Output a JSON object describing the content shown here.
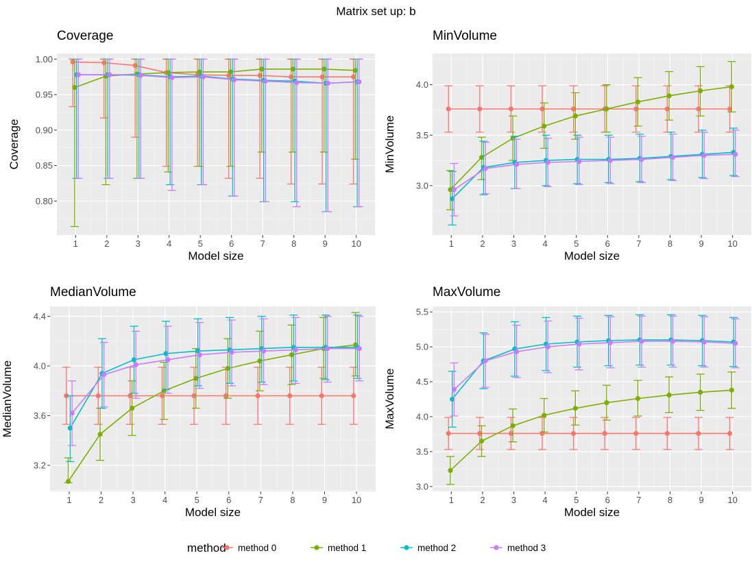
{
  "figure_title": "Matrix set up: b",
  "legend": {
    "title": "method",
    "position": "bottom",
    "entries": [
      {
        "label": "method 0",
        "color": "#F8766D"
      },
      {
        "label": "method 1",
        "color": "#7CAE00"
      },
      {
        "label": "method 2",
        "color": "#00BFC4"
      },
      {
        "label": "method 3",
        "color": "#C77CFF"
      }
    ]
  },
  "chart_data": [
    {
      "type": "line",
      "title": "Coverage",
      "xlabel": "Model size",
      "ylabel": "Coverage",
      "x": [
        1,
        2,
        3,
        4,
        5,
        6,
        7,
        8,
        9,
        10
      ],
      "ylim": [
        0.752,
        1.008
      ],
      "yticks": [
        0.8,
        0.85,
        0.9,
        0.95,
        1.0
      ],
      "ytick_labels": [
        "0.80",
        "0.85",
        "0.90",
        "0.95",
        "1.00"
      ],
      "grid": true,
      "series": [
        {
          "name": "method 0",
          "values": [
            0.996,
            0.995,
            0.991,
            0.981,
            0.978,
            0.977,
            0.977,
            0.975,
            0.975,
            0.975
          ],
          "lower": [
            0.933,
            0.917,
            0.89,
            0.849,
            0.849,
            0.832,
            0.832,
            0.824,
            0.824,
            0.824
          ],
          "upper": [
            1.0,
            1.0,
            1.0,
            1.0,
            1.0,
            1.0,
            1.0,
            1.0,
            1.0,
            1.0
          ]
        },
        {
          "name": "method 1",
          "values": [
            0.96,
            0.976,
            0.979,
            0.981,
            0.982,
            0.982,
            0.986,
            0.986,
            0.986,
            0.984
          ],
          "lower": [
            0.764,
            0.823,
            0.832,
            0.841,
            0.849,
            0.849,
            0.869,
            0.869,
            0.869,
            0.859
          ],
          "upper": [
            1.0,
            1.0,
            1.0,
            1.0,
            1.0,
            1.0,
            1.0,
            1.0,
            1.0,
            1.0
          ]
        },
        {
          "name": "method 2",
          "values": [
            0.978,
            0.978,
            0.978,
            0.975,
            0.976,
            0.972,
            0.97,
            0.969,
            0.966,
            0.968
          ],
          "lower": [
            0.832,
            0.832,
            0.832,
            0.823,
            0.823,
            0.807,
            0.799,
            0.799,
            0.785,
            0.792
          ],
          "upper": [
            1.0,
            1.0,
            1.0,
            1.0,
            1.0,
            1.0,
            1.0,
            1.0,
            1.0,
            1.0
          ]
        },
        {
          "name": "method 3",
          "values": [
            0.978,
            0.978,
            0.977,
            0.974,
            0.975,
            0.971,
            0.969,
            0.967,
            0.966,
            0.968
          ],
          "lower": [
            0.832,
            0.832,
            0.832,
            0.815,
            0.823,
            0.807,
            0.799,
            0.792,
            0.785,
            0.792
          ],
          "upper": [
            1.0,
            1.0,
            1.0,
            1.0,
            1.0,
            1.0,
            1.0,
            1.0,
            1.0,
            1.0
          ]
        }
      ]
    },
    {
      "type": "line",
      "title": "MinVolume",
      "xlabel": "Model size",
      "ylabel": "MinVolume",
      "x": [
        1,
        2,
        3,
        4,
        5,
        6,
        7,
        8,
        9,
        10
      ],
      "ylim": [
        2.51,
        4.31
      ],
      "yticks": [
        3.0,
        3.5,
        4.0
      ],
      "ytick_labels": [
        "3.0",
        "3.5",
        "4.0"
      ],
      "grid": true,
      "series": [
        {
          "name": "method 0",
          "values": [
            3.76,
            3.76,
            3.76,
            3.76,
            3.76,
            3.76,
            3.76,
            3.76,
            3.76,
            3.76
          ],
          "lower": [
            3.53,
            3.53,
            3.53,
            3.53,
            3.53,
            3.53,
            3.53,
            3.53,
            3.53,
            3.53
          ],
          "upper": [
            3.99,
            3.99,
            3.99,
            3.99,
            3.99,
            3.99,
            3.99,
            3.99,
            3.99,
            3.99
          ]
        },
        {
          "name": "method 1",
          "values": [
            2.96,
            3.28,
            3.47,
            3.59,
            3.69,
            3.76,
            3.83,
            3.89,
            3.94,
            3.98
          ],
          "lower": [
            2.76,
            3.06,
            3.25,
            3.37,
            3.46,
            3.53,
            3.59,
            3.65,
            3.69,
            3.73
          ],
          "upper": [
            3.15,
            3.48,
            3.69,
            3.82,
            3.92,
            4.0,
            4.07,
            4.13,
            4.18,
            4.23
          ]
        },
        {
          "name": "method 2",
          "values": [
            2.87,
            3.18,
            3.23,
            3.25,
            3.26,
            3.26,
            3.27,
            3.29,
            3.31,
            3.33
          ],
          "lower": [
            2.61,
            2.91,
            2.97,
            3.0,
            3.02,
            3.03,
            3.04,
            3.06,
            3.08,
            3.1
          ],
          "upper": [
            3.14,
            3.44,
            3.49,
            3.5,
            3.5,
            3.5,
            3.51,
            3.53,
            3.55,
            3.57
          ]
        },
        {
          "name": "method 3",
          "values": [
            2.96,
            3.17,
            3.21,
            3.23,
            3.24,
            3.25,
            3.26,
            3.28,
            3.3,
            3.31
          ],
          "lower": [
            2.7,
            2.92,
            2.97,
            2.99,
            3.01,
            3.02,
            3.03,
            3.05,
            3.07,
            3.09
          ],
          "upper": [
            3.22,
            3.43,
            3.46,
            3.47,
            3.48,
            3.48,
            3.49,
            3.51,
            3.53,
            3.55
          ]
        }
      ]
    },
    {
      "type": "line",
      "title": "MedianVolume",
      "xlabel": "Model size",
      "ylabel": "MedianVolume",
      "x": [
        1,
        2,
        3,
        4,
        5,
        6,
        7,
        8,
        9,
        10
      ],
      "ylim": [
        2.99,
        4.48
      ],
      "yticks": [
        3.2,
        3.6,
        4.0,
        4.4
      ],
      "ytick_labels": [
        "3.2",
        "3.6",
        "4.0",
        "4.4"
      ],
      "grid": true,
      "series": [
        {
          "name": "method 0",
          "values": [
            3.76,
            3.76,
            3.76,
            3.76,
            3.76,
            3.76,
            3.76,
            3.76,
            3.76,
            3.76
          ],
          "lower": [
            3.53,
            3.53,
            3.53,
            3.53,
            3.53,
            3.53,
            3.53,
            3.53,
            3.53,
            3.53
          ],
          "upper": [
            3.99,
            3.99,
            3.99,
            3.99,
            3.99,
            3.99,
            3.99,
            3.99,
            3.99,
            3.99
          ]
        },
        {
          "name": "method 1",
          "values": [
            3.07,
            3.45,
            3.66,
            3.8,
            3.9,
            3.98,
            4.04,
            4.09,
            4.14,
            4.17
          ],
          "lower": [
            3.06,
            3.24,
            3.44,
            3.57,
            3.66,
            3.74,
            3.8,
            3.85,
            3.9,
            3.92
          ],
          "upper": [
            3.26,
            3.66,
            3.88,
            4.03,
            4.14,
            4.22,
            4.28,
            4.33,
            4.39,
            4.43
          ]
        },
        {
          "name": "method 2",
          "values": [
            3.5,
            3.94,
            4.05,
            4.1,
            4.12,
            4.13,
            4.14,
            4.15,
            4.15,
            4.15
          ],
          "lower": [
            3.23,
            3.66,
            3.78,
            3.81,
            3.84,
            3.86,
            3.87,
            3.88,
            3.89,
            3.9
          ],
          "upper": [
            3.76,
            4.22,
            4.32,
            4.36,
            4.38,
            4.39,
            4.4,
            4.41,
            4.41,
            4.41
          ]
        },
        {
          "name": "method 3",
          "values": [
            3.62,
            3.93,
            4.01,
            4.05,
            4.09,
            4.11,
            4.12,
            4.13,
            4.14,
            4.14
          ],
          "lower": [
            3.36,
            3.67,
            3.74,
            3.78,
            3.82,
            3.84,
            3.85,
            3.86,
            3.87,
            3.88
          ],
          "upper": [
            3.88,
            4.19,
            4.28,
            4.32,
            4.35,
            4.37,
            4.38,
            4.39,
            4.4,
            4.4
          ]
        }
      ]
    },
    {
      "type": "line",
      "title": "MaxVolume",
      "xlabel": "Model size",
      "ylabel": "MaxVolume",
      "x": [
        1,
        2,
        3,
        4,
        5,
        6,
        7,
        8,
        9,
        10
      ],
      "ylim": [
        2.93,
        5.58
      ],
      "yticks": [
        3.0,
        3.5,
        4.0,
        4.5,
        5.0,
        5.5
      ],
      "ytick_labels": [
        "3.0",
        "3.5",
        "4.0",
        "4.5",
        "5.0",
        "5.5"
      ],
      "grid": true,
      "series": [
        {
          "name": "method 0",
          "values": [
            3.76,
            3.76,
            3.76,
            3.76,
            3.76,
            3.76,
            3.76,
            3.76,
            3.76,
            3.76
          ],
          "lower": [
            3.53,
            3.53,
            3.53,
            3.53,
            3.53,
            3.53,
            3.53,
            3.53,
            3.53,
            3.53
          ],
          "upper": [
            3.99,
            3.99,
            3.99,
            3.99,
            3.99,
            3.99,
            3.99,
            3.99,
            3.99,
            3.99
          ]
        },
        {
          "name": "method 1",
          "values": [
            3.23,
            3.65,
            3.87,
            4.02,
            4.12,
            4.2,
            4.26,
            4.31,
            4.35,
            4.38
          ],
          "lower": [
            3.03,
            3.43,
            3.64,
            3.78,
            3.88,
            3.95,
            4.01,
            4.06,
            4.09,
            4.12
          ],
          "upper": [
            3.43,
            3.87,
            4.11,
            4.26,
            4.37,
            4.45,
            4.52,
            4.57,
            4.61,
            4.64
          ]
        },
        {
          "name": "method 2",
          "values": [
            4.25,
            4.8,
            4.97,
            5.04,
            5.07,
            5.09,
            5.1,
            5.1,
            5.09,
            5.07
          ],
          "lower": [
            3.85,
            4.4,
            4.58,
            4.66,
            4.71,
            4.73,
            4.74,
            4.74,
            4.73,
            4.72
          ],
          "upper": [
            4.65,
            5.2,
            5.36,
            5.42,
            5.44,
            5.45,
            5.46,
            5.46,
            5.45,
            5.42
          ]
        },
        {
          "name": "method 3",
          "values": [
            4.39,
            4.8,
            4.93,
            5.0,
            5.04,
            5.06,
            5.08,
            5.08,
            5.07,
            5.05
          ],
          "lower": [
            4.01,
            4.42,
            4.56,
            4.63,
            4.67,
            4.7,
            4.71,
            4.71,
            4.71,
            4.7
          ],
          "upper": [
            4.77,
            5.18,
            5.31,
            5.37,
            5.41,
            5.43,
            5.44,
            5.44,
            5.43,
            5.4
          ]
        }
      ]
    }
  ]
}
